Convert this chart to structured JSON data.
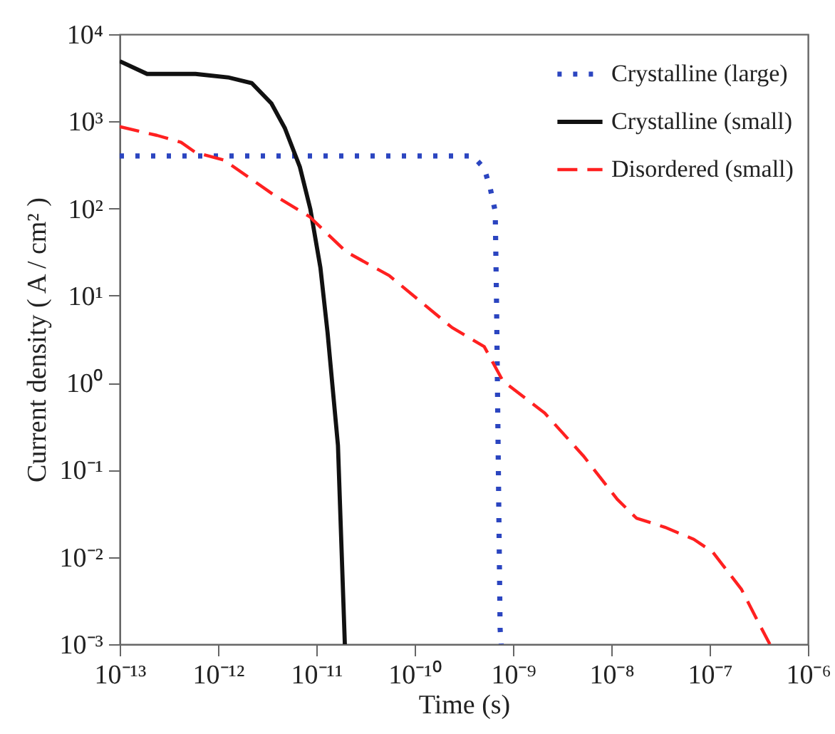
{
  "chart_data": {
    "type": "line",
    "xlabel": "Time (s)",
    "ylabel": "Current density ( A / cm² )",
    "log": "xy",
    "grid": false,
    "legend": "top right",
    "xlim": [
      1e-13,
      1e-06
    ],
    "ylim": [
      0.001,
      10000
    ],
    "xticks": [
      {
        "value": 1e-13,
        "label": "10⁻¹³"
      },
      {
        "value": 1e-12,
        "label": "10⁻¹²"
      },
      {
        "value": 1e-11,
        "label": "10⁻¹¹"
      },
      {
        "value": 1e-10,
        "label": "10⁻¹⁰"
      },
      {
        "value": 1e-09,
        "label": "10⁻⁹"
      },
      {
        "value": 1e-08,
        "label": "10⁻⁸"
      },
      {
        "value": 1e-07,
        "label": "10⁻⁷"
      },
      {
        "value": 1e-06,
        "label": "10⁻⁶"
      }
    ],
    "yticks": [
      {
        "value": 0.001,
        "label": "10⁻³"
      },
      {
        "value": 0.01,
        "label": "10⁻²"
      },
      {
        "value": 0.1,
        "label": "10⁻¹"
      },
      {
        "value": 1,
        "label": "10⁰"
      },
      {
        "value": 10,
        "label": "10¹"
      },
      {
        "value": 100,
        "label": "10²"
      },
      {
        "value": 1000,
        "label": "10³"
      },
      {
        "value": 10000,
        "label": "10⁴"
      }
    ],
    "series": [
      {
        "name": "Crystalline (large)",
        "color": "#2b45c0",
        "line_style": "dotted",
        "x": [
          1e-13,
          3.9e-10,
          5.1e-10,
          5.9e-10,
          6.6e-10,
          6.8e-10,
          7e-10,
          7.4e-10,
          7.6e-10
        ],
        "values": [
          400,
          400,
          290,
          166,
          93,
          9.1,
          0.46,
          0.0015,
          0.001
        ]
      },
      {
        "name": "Crystalline (small)",
        "color": "#111111",
        "line_style": "solid",
        "x": [
          1e-13,
          1.9e-13,
          5.9e-13,
          1.26e-12,
          2.2e-12,
          3.5e-12,
          4.8e-12,
          6.8e-12,
          8.7e-12,
          1.1e-11,
          1.3e-11,
          1.66e-11,
          1.95e-11
        ],
        "values": [
          4900,
          3500,
          3500,
          3200,
          2750,
          1600,
          830,
          300,
          98,
          21,
          3.8,
          0.19,
          0.001
        ]
      },
      {
        "name": "Disordered (small)",
        "color": "#ff2020",
        "line_style": "dashed",
        "x": [
          1e-13,
          2.4e-13,
          4.2e-13,
          5.9e-13,
          1.15e-12,
          3.8e-12,
          8.5e-12,
          2e-11,
          5.5e-11,
          2.4e-10,
          5.1e-10,
          7.9e-10,
          2.1e-09,
          5.2e-09,
          1.15e-08,
          1.8e-08,
          3.5e-08,
          6.9e-08,
          1.07e-07,
          2.1e-07,
          3.2e-07,
          4.1e-07
        ],
        "values": [
          870,
          690,
          575,
          440,
          360,
          140,
          81,
          32,
          17,
          4.3,
          2.6,
          1.05,
          0.45,
          0.145,
          0.046,
          0.028,
          0.022,
          0.016,
          0.0115,
          0.0043,
          0.0017,
          0.001
        ]
      }
    ]
  }
}
